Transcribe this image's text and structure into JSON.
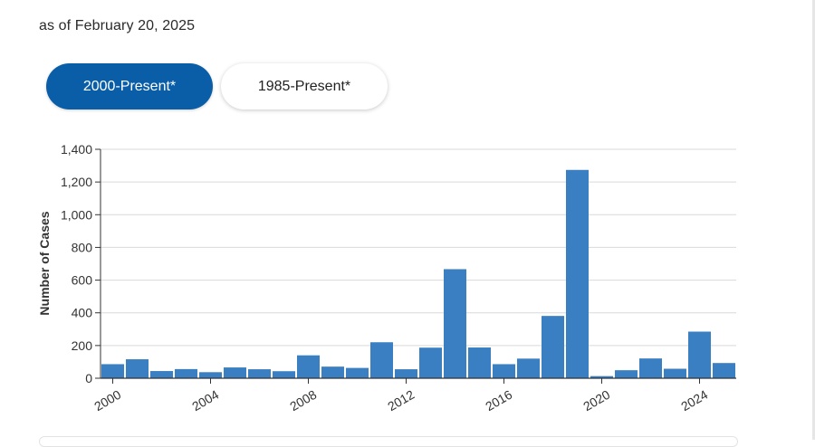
{
  "header": {
    "as_of": "as of February 20, 2025"
  },
  "toggles": {
    "active_label": "2000-Present*",
    "inactive_label": "1985-Present*"
  },
  "colors": {
    "bar": "#3a7fc1",
    "active_toggle": "#0a5ea8",
    "grid": "#d9d9d9",
    "axis": "#333333"
  },
  "chart_data": {
    "type": "bar",
    "ylabel": "Number of Cases",
    "xlabel": "",
    "ylim": [
      0,
      1400
    ],
    "yticks": [
      0,
      200,
      400,
      600,
      800,
      1000,
      1200,
      1400
    ],
    "ytick_labels": [
      "0",
      "200",
      "400",
      "600",
      "800",
      "1,000",
      "1,200",
      "1,400"
    ],
    "xtick_labels": [
      "2000",
      "2004",
      "2008",
      "2012",
      "2016",
      "2020",
      "2024"
    ],
    "grid": true,
    "categories": [
      "2000",
      "2001",
      "2002",
      "2003",
      "2004",
      "2005",
      "2006",
      "2007",
      "2008",
      "2009",
      "2010",
      "2011",
      "2012",
      "2013",
      "2014",
      "2015",
      "2016",
      "2017",
      "2018",
      "2019",
      "2020",
      "2021",
      "2022",
      "2023",
      "2024",
      "2025"
    ],
    "values": [
      86,
      116,
      44,
      56,
      37,
      66,
      55,
      43,
      140,
      71,
      63,
      220,
      55,
      187,
      667,
      188,
      86,
      120,
      381,
      1274,
      13,
      49,
      121,
      58,
      285,
      93
    ]
  }
}
